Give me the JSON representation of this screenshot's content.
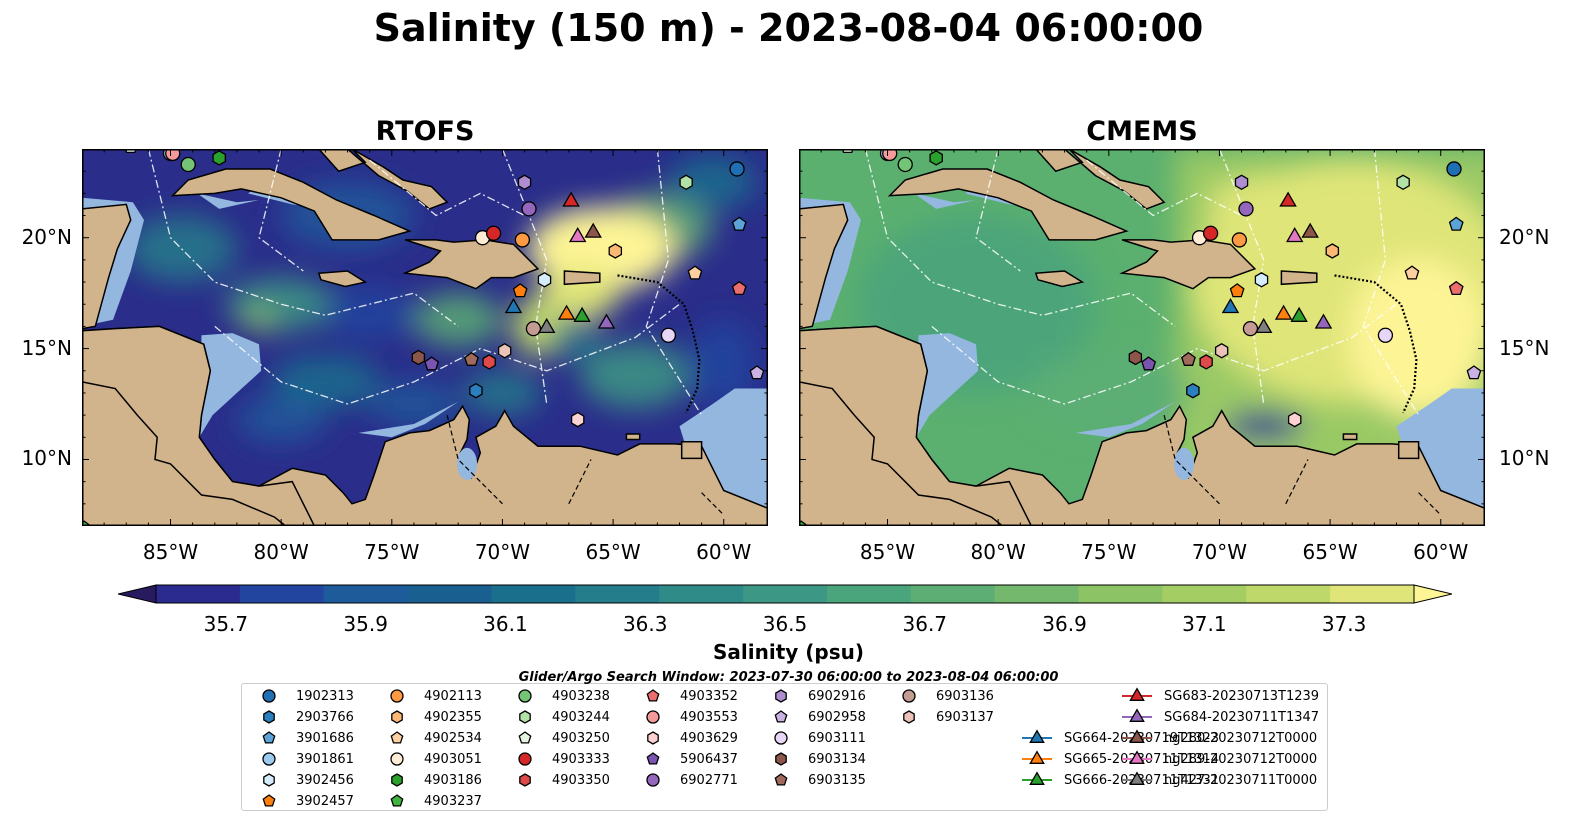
{
  "title": "Salinity (150 m) - 2023-08-04 06:00:00",
  "panels": [
    {
      "title": "RTOFS"
    },
    {
      "title": "CMEMS"
    }
  ],
  "map": {
    "lon_range": [
      -89,
      -58
    ],
    "lat_range": [
      7,
      24
    ],
    "lon_ticks": [
      "85°W",
      "80°W",
      "75°W",
      "70°W",
      "65°W",
      "60°W"
    ],
    "lat_ticks": [
      "20°N",
      "15°N",
      "10°N"
    ],
    "land_color": "#d2b48c",
    "shelf_color": "#94b7e0"
  },
  "colorbar": {
    "label": "Salinity (psu)",
    "ticks": [
      "35.7",
      "35.9",
      "36.1",
      "36.3",
      "36.5",
      "36.7",
      "36.9",
      "37.1",
      "37.3"
    ],
    "range": [
      35.6,
      37.4
    ],
    "colors": [
      "#271a5e",
      "#2b2a8f",
      "#22469f",
      "#1d5b9b",
      "#195f8f",
      "#1a6f8d",
      "#247d8a",
      "#2e8b88",
      "#3c9884",
      "#4aa47c",
      "#5cae74",
      "#73b86c",
      "#8cc465",
      "#a4ce63",
      "#bfd86a",
      "#dfe578",
      "#fdf495"
    ]
  },
  "search_window": "Glider/Argo Search Window: 2023-07-30 06:00:00 to 2023-08-04 06:00:00",
  "legend": [
    {
      "label": "1902313",
      "marker": "circle",
      "color": "#1f6fb4"
    },
    {
      "label": "2903766",
      "marker": "hexagon",
      "color": "#2a7fbf"
    },
    {
      "label": "3901686",
      "marker": "pentagon",
      "color": "#5ba3d9"
    },
    {
      "label": "3901861",
      "marker": "circle",
      "color": "#9ccbf0"
    },
    {
      "label": "3902456",
      "marker": "hexagon",
      "color": "#d4ecfb"
    },
    {
      "label": "3902457",
      "marker": "pentagon",
      "color": "#ff7f0e"
    },
    {
      "label": "4902113",
      "marker": "circle",
      "color": "#fd9a43"
    },
    {
      "label": "4902355",
      "marker": "hexagon",
      "color": "#fdb873"
    },
    {
      "label": "4902534",
      "marker": "pentagon",
      "color": "#fdd0a2"
    },
    {
      "label": "4903051",
      "marker": "circle",
      "color": "#feecd5"
    },
    {
      "label": "4903186",
      "marker": "hexagon",
      "color": "#2ca02c"
    },
    {
      "label": "4903237",
      "marker": "pentagon",
      "color": "#3fb43f"
    },
    {
      "label": "4903238",
      "marker": "circle",
      "color": "#74c476"
    },
    {
      "label": "4903244",
      "marker": "hexagon",
      "color": "#b2e2a5"
    },
    {
      "label": "4903250",
      "marker": "pentagon",
      "color": "#e5f5e0"
    },
    {
      "label": "4903333",
      "marker": "circle",
      "color": "#d62728"
    },
    {
      "label": "4903350",
      "marker": "hexagon",
      "color": "#de4a4a"
    },
    {
      "label": "4903352",
      "marker": "pentagon",
      "color": "#ec6d6d"
    },
    {
      "label": "4903553",
      "marker": "circle",
      "color": "#f59a9a"
    },
    {
      "label": "4903629",
      "marker": "hexagon",
      "color": "#fcd2d2"
    },
    {
      "label": "5906437",
      "marker": "pentagon",
      "color": "#7b53b0"
    },
    {
      "label": "6902771",
      "marker": "circle",
      "color": "#9467bd"
    },
    {
      "label": "6902916",
      "marker": "hexagon",
      "color": "#ae8ed1"
    },
    {
      "label": "6902958",
      "marker": "pentagon",
      "color": "#c9b2e3"
    },
    {
      "label": "6903111",
      "marker": "circle",
      "color": "#e7d6f5"
    },
    {
      "label": "6903134",
      "marker": "hexagon",
      "color": "#8c564b"
    },
    {
      "label": "6903135",
      "marker": "pentagon",
      "color": "#a06a5c"
    },
    {
      "label": "6903136",
      "marker": "circle",
      "color": "#c49c94"
    },
    {
      "label": "6903137",
      "marker": "hexagon",
      "color": "#ebc3b8"
    },
    {
      "label": "SG664-20230719T1323",
      "marker": "triangle-line",
      "color": "#1f77b4"
    },
    {
      "label": "SG665-20230711T1314",
      "marker": "triangle-line",
      "color": "#ff7f0e"
    },
    {
      "label": "SG666-20230711T1331",
      "marker": "triangle-line",
      "color": "#2ca02c"
    },
    {
      "label": "SG683-20230713T1239",
      "marker": "triangle-line",
      "color": "#d62728"
    },
    {
      "label": "SG684-20230711T1347",
      "marker": "triangle-line",
      "color": "#9467bd"
    },
    {
      "label": "ng280-20230712T0000",
      "marker": "triangle-line",
      "color": "#8c564b"
    },
    {
      "label": "ng289-20230712T0000",
      "marker": "triangle-line",
      "color": "#e377c2"
    },
    {
      "label": "ng427-20230711T0000",
      "marker": "triangle-line",
      "color": "#7f7f7f"
    }
  ],
  "floats": [
    {
      "id": "1902313",
      "lon": -59.4,
      "lat": 23.1
    },
    {
      "id": "2903766",
      "lon": -71.2,
      "lat": 13.1
    },
    {
      "id": "3901686",
      "lon": -59.3,
      "lat": 20.6
    },
    {
      "id": "3901861",
      "lon": -85.0,
      "lat": 23.8
    },
    {
      "id": "3902456",
      "lon": -68.1,
      "lat": 18.1
    },
    {
      "id": "3902457",
      "lon": -69.2,
      "lat": 17.6
    },
    {
      "id": "4902113",
      "lon": -69.1,
      "lat": 19.9
    },
    {
      "id": "4902355",
      "lon": -64.9,
      "lat": 19.4
    },
    {
      "id": "4902534",
      "lon": -61.3,
      "lat": 18.4
    },
    {
      "id": "4903051",
      "lon": -70.9,
      "lat": 20.0
    },
    {
      "id": "4903186",
      "lon": -82.8,
      "lat": 23.6
    },
    {
      "id": "4903237",
      "lon": -88.9,
      "lat": 6.9
    },
    {
      "id": "4903238",
      "lon": -84.2,
      "lat": 23.3
    },
    {
      "id": "4903244",
      "lon": -61.7,
      "lat": 22.5
    },
    {
      "id": "4903250",
      "lon": -86.8,
      "lat": 24.1
    },
    {
      "id": "4903333",
      "lon": -70.4,
      "lat": 20.2
    },
    {
      "id": "4903350",
      "lon": -70.6,
      "lat": 14.4
    },
    {
      "id": "4903352",
      "lon": -59.3,
      "lat": 17.7
    },
    {
      "id": "4903553",
      "lon": -84.9,
      "lat": 23.8
    },
    {
      "id": "4903629",
      "lon": -66.6,
      "lat": 11.8
    },
    {
      "id": "5906437",
      "lon": -73.2,
      "lat": 14.3
    },
    {
      "id": "6902771",
      "lon": -68.8,
      "lat": 21.3
    },
    {
      "id": "6902916",
      "lon": -69.0,
      "lat": 22.5
    },
    {
      "id": "6902958",
      "lon": -58.5,
      "lat": 13.9
    },
    {
      "id": "6903111",
      "lon": -62.5,
      "lat": 15.6
    },
    {
      "id": "6903134",
      "lon": -73.8,
      "lat": 14.6
    },
    {
      "id": "6903135",
      "lon": -71.4,
      "lat": 14.5
    },
    {
      "id": "6903136",
      "lon": -68.6,
      "lat": 15.9
    },
    {
      "id": "6903137",
      "lon": -69.9,
      "lat": 14.9
    }
  ],
  "gliders": [
    {
      "id": "SG664-20230719T1323",
      "lon": -69.5,
      "lat": 16.9
    },
    {
      "id": "SG665-20230711T1314",
      "lon": -67.1,
      "lat": 16.6
    },
    {
      "id": "SG666-20230711T1331",
      "lon": -66.4,
      "lat": 16.5
    },
    {
      "id": "SG683-20230713T1239",
      "lon": -66.9,
      "lat": 21.7
    },
    {
      "id": "SG684-20230711T1347",
      "lon": -65.3,
      "lat": 16.2
    },
    {
      "id": "ng280-20230712T0000",
      "lon": -65.9,
      "lat": 20.3
    },
    {
      "id": "ng289-20230712T0000",
      "lon": -66.6,
      "lat": 20.1
    },
    {
      "id": "ng427-20230711T0000",
      "lon": -68.0,
      "lat": 16.0
    }
  ]
}
